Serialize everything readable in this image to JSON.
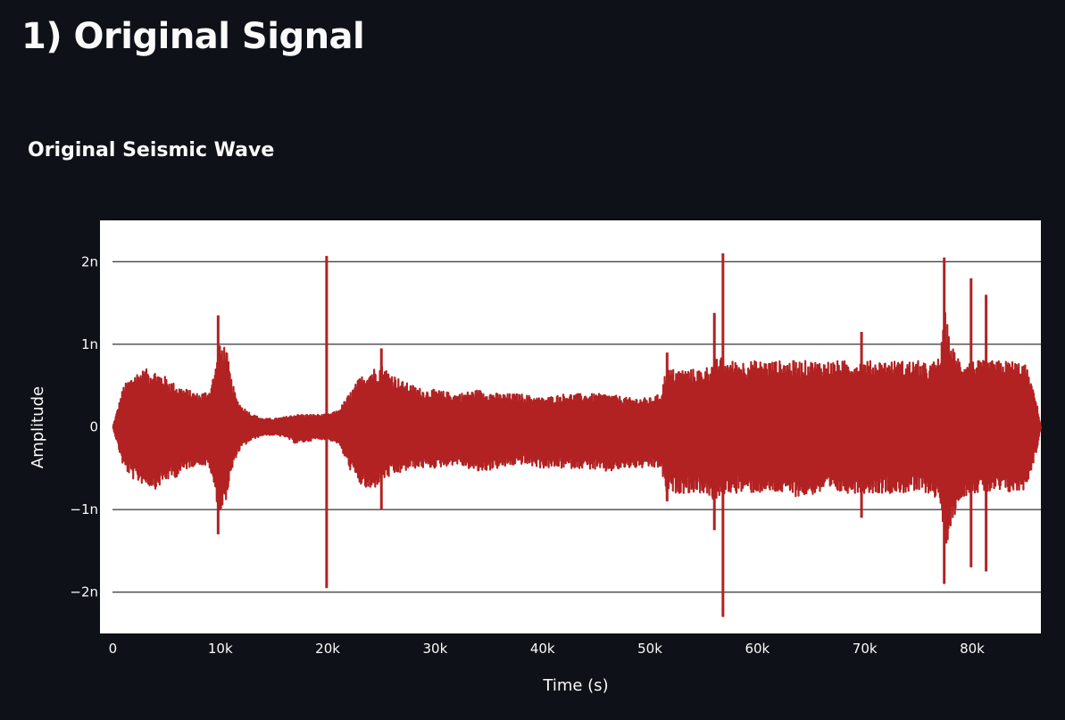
{
  "page": {
    "title": "1) Original Signal"
  },
  "chart_data": {
    "type": "line",
    "title": "Original Seismic Wave",
    "xlabel": "Time (s)",
    "ylabel": "Amplitude",
    "xlim": [
      -1200,
      86400
    ],
    "ylim": [
      -2.5e-09,
      2.5e-09
    ],
    "x_ticks": [
      {
        "value": 0,
        "label": "0"
      },
      {
        "value": 10000,
        "label": "10k"
      },
      {
        "value": 20000,
        "label": "20k"
      },
      {
        "value": 30000,
        "label": "30k"
      },
      {
        "value": 40000,
        "label": "40k"
      },
      {
        "value": 50000,
        "label": "50k"
      },
      {
        "value": 60000,
        "label": "60k"
      },
      {
        "value": 70000,
        "label": "70k"
      },
      {
        "value": 80000,
        "label": "80k"
      }
    ],
    "y_ticks": [
      {
        "value": 2e-09,
        "label": "2n"
      },
      {
        "value": 1e-09,
        "label": "1n"
      },
      {
        "value": 0,
        "label": "0"
      },
      {
        "value": -1e-09,
        "label": "−1n"
      },
      {
        "value": -2e-09,
        "label": "−2n"
      }
    ],
    "grid": "horizontal",
    "colors": {
      "line": "#b22222",
      "plot_background": "#ffffff",
      "gridline": "#000000"
    },
    "series": [
      {
        "envelope": {
          "x": [
            0,
            500,
            1000,
            2000,
            3000,
            4000,
            5000,
            6000,
            7000,
            8000,
            9000,
            9500,
            10000,
            10500,
            11000,
            11500,
            12000,
            13000,
            14000,
            15000,
            16000,
            17000,
            18000,
            19000,
            20000,
            21000,
            22000,
            23000,
            24000,
            25000,
            26000,
            27000,
            28000,
            29000,
            30000,
            32000,
            34000,
            36000,
            38000,
            40000,
            42000,
            44000,
            46000,
            48000,
            50000,
            51000,
            51500,
            52000,
            54000,
            55000,
            56000,
            56500,
            57000,
            58000,
            60000,
            62000,
            64000,
            66000,
            68000,
            70000,
            72000,
            74000,
            75000,
            76000,
            77000,
            77500,
            78000,
            79000,
            80000,
            82000,
            84000,
            85000,
            86000,
            86400
          ],
          "upper": [
            0,
            2.5e-10,
            5e-10,
            6.5e-10,
            7e-10,
            6.8e-10,
            6e-10,
            5e-10,
            4.5e-10,
            4e-10,
            4.5e-10,
            7e-10,
            1e-09,
            1e-09,
            6e-10,
            3.5e-10,
            2.5e-10,
            1.5e-10,
            1e-10,
            1e-10,
            1.2e-10,
            1.5e-10,
            1.5e-10,
            1.5e-10,
            1.5e-10,
            2e-10,
            4e-10,
            6e-10,
            7e-10,
            7.5e-10,
            6.5e-10,
            5.5e-10,
            5e-10,
            4.5e-10,
            4.5e-10,
            4e-10,
            4.5e-10,
            4e-10,
            4e-10,
            3.5e-10,
            4e-10,
            4e-10,
            4e-10,
            3.5e-10,
            3.5e-10,
            4e-10,
            7e-10,
            7e-10,
            7e-10,
            7e-10,
            8e-10,
            8.5e-10,
            8e-10,
            8e-10,
            8e-10,
            8e-10,
            8e-10,
            8e-10,
            8e-10,
            8e-10,
            8e-10,
            8e-10,
            8e-10,
            7.5e-10,
            8.5e-10,
            1.4e-09,
            1e-09,
            8e-10,
            8e-10,
            8e-10,
            8e-10,
            7.5e-10,
            3e-10,
            0
          ],
          "lower": [
            0,
            -2.5e-10,
            -5e-10,
            -6.5e-10,
            -7e-10,
            -7.5e-10,
            -6.5e-10,
            -6e-10,
            -5e-10,
            -4.5e-10,
            -5e-10,
            -8e-10,
            -1.1e-09,
            -9e-10,
            -6e-10,
            -3.5e-10,
            -2.5e-10,
            -1.5e-10,
            -1e-10,
            -1e-10,
            -1.2e-10,
            -2e-10,
            -1.8e-10,
            -1.5e-10,
            -1.5e-10,
            -2e-10,
            -5e-10,
            -7e-10,
            -8e-10,
            -6.5e-10,
            -6e-10,
            -5.5e-10,
            -5e-10,
            -5e-10,
            -5e-10,
            -4.5e-10,
            -5.5e-10,
            -5e-10,
            -4.5e-10,
            -5e-10,
            -5e-10,
            -5e-10,
            -5.5e-10,
            -5e-10,
            -5e-10,
            -5e-10,
            -8e-10,
            -8e-10,
            -8e-10,
            -8e-10,
            -9e-10,
            -9e-10,
            -8e-10,
            -8e-10,
            -8e-10,
            -8e-10,
            -8.5e-10,
            -8e-10,
            -8e-10,
            -8e-10,
            -8e-10,
            -8e-10,
            -8e-10,
            -8e-10,
            -9e-10,
            -1.5e-09,
            -1.2e-09,
            -8.5e-10,
            -8e-10,
            -8e-10,
            -8e-10,
            -7.5e-10,
            -3e-10,
            0
          ]
        },
        "spikes": [
          {
            "x": 9800,
            "max": 1.35e-09,
            "min": -1.3e-09
          },
          {
            "x": 19900,
            "max": 2.07e-09,
            "min": -1.95e-09
          },
          {
            "x": 25000,
            "max": 9.5e-10,
            "min": -1e-09
          },
          {
            "x": 51600,
            "max": 9e-10,
            "min": -9e-10
          },
          {
            "x": 56000,
            "max": 1.38e-09,
            "min": -1.25e-09
          },
          {
            "x": 56800,
            "max": 2.1e-09,
            "min": -2.3e-09
          },
          {
            "x": 69700,
            "max": 1.15e-09,
            "min": -1.1e-09
          },
          {
            "x": 77400,
            "max": 2.05e-09,
            "min": -1.9e-09
          },
          {
            "x": 79900,
            "max": 1.8e-09,
            "min": -1.7e-09
          },
          {
            "x": 81300,
            "max": 1.6e-09,
            "min": -1.75e-09
          }
        ]
      }
    ]
  }
}
